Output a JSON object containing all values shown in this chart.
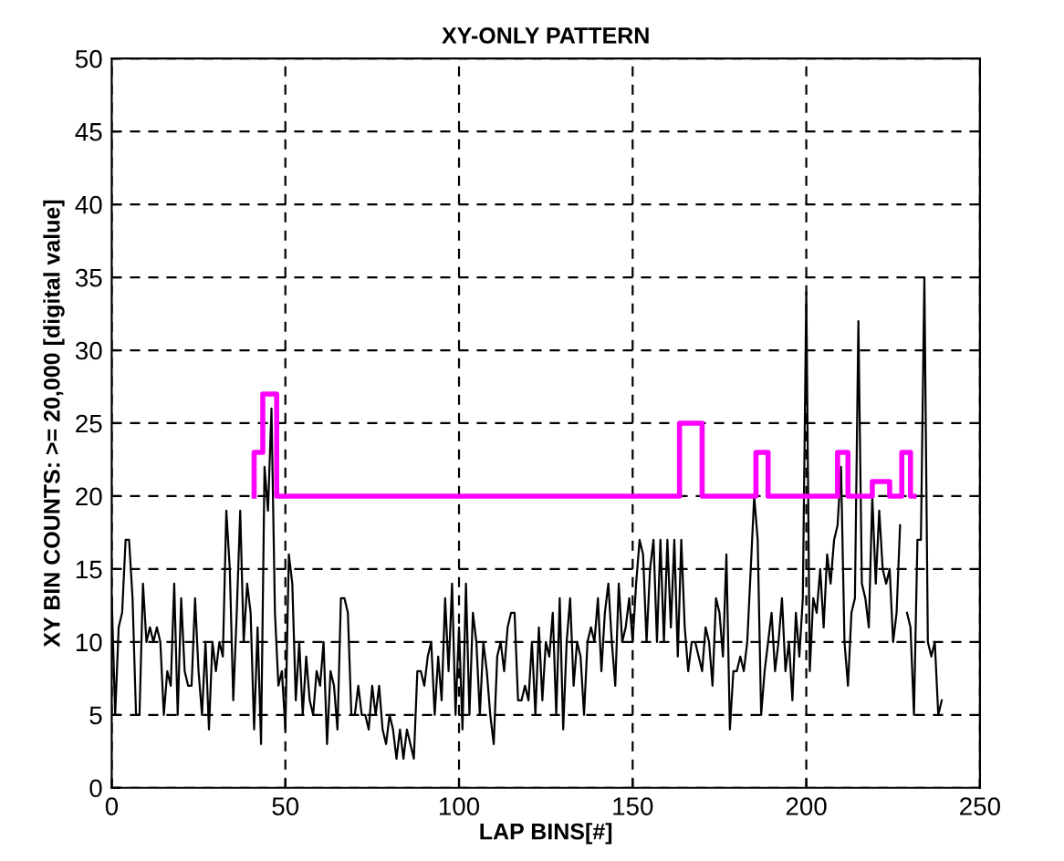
{
  "chart_data": {
    "type": "line",
    "title": "XY-ONLY PATTERN",
    "xlabel": "LAP BINS[#]",
    "ylabel": "XY BIN COUNTS: >= 20,000 [digital value]",
    "xlim": [
      0,
      250
    ],
    "xticks": [
      0,
      50,
      100,
      150,
      200,
      250
    ],
    "ylim": [
      0,
      50
    ],
    "yticks": [
      0,
      5,
      10,
      15,
      20,
      25,
      30,
      35,
      40,
      45,
      50
    ],
    "grid": true,
    "series": [
      {
        "color": "#000000",
        "x": [
          0,
          1,
          2,
          3,
          4,
          5,
          6,
          7,
          8,
          9,
          10,
          11,
          12,
          13,
          14,
          15,
          16,
          17,
          18,
          19,
          20,
          21,
          22,
          23,
          24,
          25,
          26,
          27,
          28,
          29,
          30,
          31,
          32,
          33,
          34,
          35,
          36,
          37,
          38,
          39,
          40,
          41,
          42,
          43,
          44,
          45,
          46,
          47,
          48,
          49,
          50,
          51,
          52,
          53,
          54,
          55,
          56,
          57,
          58,
          59,
          60,
          61,
          62,
          63,
          64,
          65,
          66,
          67,
          68,
          69,
          70,
          71,
          72,
          73,
          74,
          75,
          76,
          77,
          78,
          79,
          80,
          81,
          82,
          83,
          84,
          85,
          86,
          87,
          88,
          89,
          90,
          91,
          92,
          93,
          94,
          95,
          96,
          97,
          98,
          99,
          100,
          101,
          102,
          103,
          104,
          105,
          106,
          107,
          108,
          109,
          110,
          111,
          112,
          113,
          114,
          115,
          116,
          117,
          118,
          119,
          120,
          121,
          122,
          123,
          124,
          125,
          126,
          127,
          128,
          129,
          130,
          131,
          132,
          133,
          134,
          135,
          136,
          137,
          138,
          139,
          140,
          141,
          142,
          143,
          144,
          145,
          146,
          147,
          148,
          149,
          150,
          151,
          152,
          153,
          154,
          155,
          156,
          157,
          158,
          159,
          160,
          161,
          162,
          163,
          164,
          165,
          166,
          167,
          168,
          169,
          170,
          171,
          172,
          173,
          174,
          175,
          176,
          177,
          178,
          179,
          180,
          181,
          182,
          183,
          184,
          185,
          186,
          187,
          188,
          189,
          190,
          191,
          192,
          193,
          194,
          195,
          196,
          197,
          198,
          199,
          200,
          201,
          202,
          203,
          204,
          205,
          206,
          207,
          208,
          209,
          210,
          211,
          212,
          213,
          214,
          215,
          216,
          217,
          218,
          219,
          220,
          221,
          222,
          223,
          224,
          225,
          226,
          227,
          228,
          229,
          230,
          231,
          232,
          233,
          234,
          235,
          236,
          237,
          238,
          239
        ],
        "values": [
          13,
          5,
          11,
          12,
          17,
          17,
          13,
          5,
          5,
          14,
          10,
          11,
          10,
          11,
          10,
          5,
          8,
          7,
          14,
          5,
          13,
          8,
          7,
          7,
          13,
          8,
          5,
          10,
          4,
          10,
          8,
          10,
          9,
          19,
          15,
          6,
          12,
          19,
          10,
          14,
          12,
          4,
          11,
          3,
          22,
          19,
          26,
          12,
          7,
          8,
          4,
          16,
          14,
          6,
          10,
          5,
          9,
          6,
          5,
          8,
          7,
          10,
          3,
          8,
          7,
          4,
          13,
          13,
          12,
          5,
          5,
          7,
          5,
          5,
          4,
          7,
          5,
          7,
          4,
          3,
          5,
          4,
          2,
          4,
          2,
          4,
          3,
          2,
          8,
          8,
          7,
          9,
          10,
          5,
          9,
          6,
          13,
          8,
          14,
          5,
          11,
          4,
          14,
          5,
          12,
          10,
          5,
          10,
          8,
          5,
          3,
          9,
          10,
          8,
          11,
          12,
          12,
          6,
          6,
          7,
          6,
          10,
          5,
          11,
          6,
          10,
          9,
          12,
          5,
          13,
          4,
          10,
          13,
          7,
          10,
          9,
          5,
          10,
          11,
          10,
          13,
          8,
          12,
          14,
          10,
          7,
          14,
          10,
          11,
          13,
          10,
          14,
          17,
          16,
          10,
          15,
          17,
          10,
          17,
          10,
          17,
          11,
          17,
          9,
          17,
          11,
          8,
          10,
          10,
          9,
          8,
          11,
          10,
          7,
          13,
          12,
          9,
          16,
          4,
          8,
          8,
          9,
          8,
          10,
          15,
          20,
          17,
          5,
          8,
          10,
          12,
          8,
          10,
          13,
          8,
          10,
          6,
          12,
          9,
          13,
          34,
          8,
          13,
          12,
          15,
          11,
          16,
          14,
          17,
          18,
          22,
          10,
          7,
          12,
          13,
          32,
          14,
          13,
          11,
          20,
          14,
          19,
          15,
          14,
          15,
          10,
          12,
          18,
          null,
          12,
          11,
          5,
          17,
          17,
          35,
          10,
          9,
          10,
          5,
          6
        ]
      },
      {
        "color": "#ff00ff",
        "x": [
          41,
          41,
          43.5,
          43.5,
          47.5,
          47.5,
          163.5,
          163.5,
          170,
          170,
          185.5,
          185.5,
          189,
          189,
          209,
          209,
          212,
          212,
          219,
          219,
          224,
          224,
          227.5,
          227.5,
          230,
          230,
          231
        ],
        "values": [
          20,
          23,
          23,
          27,
          27,
          20,
          20,
          25,
          25,
          20,
          20,
          23,
          23,
          20,
          20,
          23,
          23,
          20,
          20,
          21,
          21,
          20,
          20,
          23,
          23,
          20,
          20
        ]
      }
    ]
  }
}
